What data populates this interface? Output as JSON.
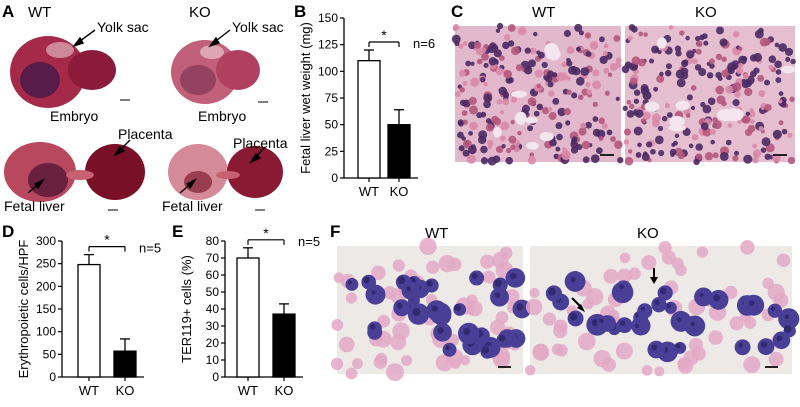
{
  "panels": {
    "A": {
      "letter": "A",
      "wt": "WT",
      "ko": "KO",
      "yolk_sac": "Yolk sac",
      "embryo": "Embryo",
      "placenta": "Placenta",
      "fetal_liver": "Fetal liver"
    },
    "B": {
      "letter": "B"
    },
    "C": {
      "letter": "C",
      "wt": "WT",
      "ko": "KO"
    },
    "D": {
      "letter": "D"
    },
    "E": {
      "letter": "E"
    },
    "F": {
      "letter": "F",
      "wt": "WT",
      "ko": "KO"
    }
  },
  "chart_data": [
    {
      "id": "B",
      "type": "bar",
      "categories": [
        "WT",
        "KO"
      ],
      "values": [
        110,
        50
      ],
      "errors": [
        10,
        14
      ],
      "colors": [
        "#ffffff",
        "#000000"
      ],
      "ylabel": "Fetal liver wet weight (mg)",
      "ylim": [
        0,
        150
      ],
      "yticks": [
        0,
        25,
        50,
        75,
        100,
        125,
        150
      ],
      "significance": "*",
      "n_label": "n=6"
    },
    {
      "id": "D",
      "type": "bar",
      "categories": [
        "WT",
        "KO"
      ],
      "values": [
        248,
        57
      ],
      "errors": [
        22,
        27
      ],
      "colors": [
        "#ffffff",
        "#000000"
      ],
      "ylabel": "Erythropoietic cells/HPF",
      "ylim": [
        0,
        300
      ],
      "yticks": [
        0,
        50,
        100,
        150,
        200,
        250,
        300
      ],
      "significance": "*",
      "n_label": "n=5"
    },
    {
      "id": "E",
      "type": "bar",
      "categories": [
        "WT",
        "KO"
      ],
      "values": [
        70,
        37
      ],
      "errors": [
        6,
        6
      ],
      "colors": [
        "#ffffff",
        "#000000"
      ],
      "ylabel": "TER119+ cells (%)",
      "ylim": [
        0,
        80
      ],
      "yticks": [
        0,
        10,
        20,
        30,
        40,
        50,
        60,
        70,
        80
      ],
      "significance": "*",
      "n_label": "n=5"
    }
  ]
}
